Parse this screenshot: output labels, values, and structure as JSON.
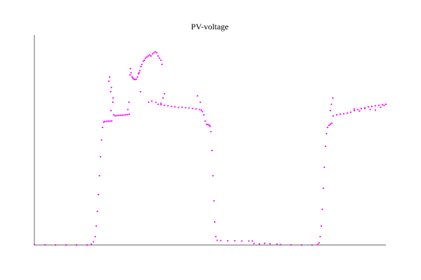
{
  "chart_data": {
    "type": "scatter",
    "title": "PV-voltage",
    "xlabel": "",
    "ylabel": "",
    "grid": false,
    "legend": "none",
    "xlim": [
      0,
      100
    ],
    "ylim": [
      0,
      100
    ],
    "marker_color": "#ff00ff",
    "series": [
      {
        "points": [
          [
            0,
            0.2
          ],
          [
            3,
            0.1
          ],
          [
            6,
            0
          ],
          [
            9,
            0
          ],
          [
            12,
            0
          ],
          [
            15,
            0
          ],
          [
            16.2,
            0.4
          ],
          [
            16.8,
            1.5
          ],
          [
            17.3,
            4
          ],
          [
            17.6,
            9
          ],
          [
            17.9,
            16
          ],
          [
            18.2,
            24
          ],
          [
            18.5,
            33
          ],
          [
            18.8,
            42
          ],
          [
            19.1,
            50
          ],
          [
            19.4,
            56
          ],
          [
            19.7,
            58.5
          ],
          [
            20,
            58.8
          ],
          [
            20.5,
            58.9
          ],
          [
            21,
            59
          ],
          [
            21.5,
            59
          ],
          [
            22,
            59.1
          ],
          [
            21.8,
            64
          ],
          [
            22.3,
            68
          ],
          [
            22.4,
            70
          ],
          [
            21.7,
            73
          ],
          [
            21.9,
            75
          ],
          [
            21.2,
            78
          ],
          [
            21.4,
            80
          ],
          [
            22.6,
            62
          ],
          [
            23,
            61.5
          ],
          [
            23.5,
            61.6
          ],
          [
            24,
            61.7
          ],
          [
            24.5,
            61.8
          ],
          [
            25,
            61.8
          ],
          [
            25.5,
            61.9
          ],
          [
            26,
            62
          ],
          [
            26.5,
            62.1
          ],
          [
            27,
            62.3
          ],
          [
            26.6,
            64.5
          ],
          [
            26.9,
            68
          ],
          [
            27.2,
            81
          ],
          [
            27.3,
            84
          ],
          [
            27.5,
            82
          ],
          [
            27.8,
            80
          ],
          [
            28,
            79.5
          ],
          [
            28.3,
            79
          ],
          [
            28.6,
            78.8
          ],
          [
            29,
            79
          ],
          [
            29.3,
            80
          ],
          [
            29.6,
            81.5
          ],
          [
            29.8,
            82
          ],
          [
            30,
            83
          ],
          [
            30.3,
            85
          ],
          [
            30.6,
            86
          ],
          [
            31,
            87.5
          ],
          [
            31.3,
            88
          ],
          [
            31.6,
            89
          ],
          [
            32,
            89.5
          ],
          [
            32.4,
            90
          ],
          [
            32.8,
            90.5
          ],
          [
            33.2,
            90
          ],
          [
            33.6,
            91
          ],
          [
            34,
            91.5
          ],
          [
            34.4,
            92
          ],
          [
            34.8,
            91.5
          ],
          [
            35.2,
            90
          ],
          [
            35.6,
            89
          ],
          [
            36,
            88
          ],
          [
            36.3,
            86
          ],
          [
            30.2,
            73
          ],
          [
            32.5,
            68
          ],
          [
            33.4,
            68.5
          ],
          [
            34.6,
            67.9
          ],
          [
            36,
            67.5
          ],
          [
            36.6,
            70
          ],
          [
            37,
            72
          ],
          [
            35.2,
            67
          ],
          [
            36,
            66.8
          ],
          [
            37,
            66.5
          ],
          [
            38,
            66.3
          ],
          [
            39,
            66
          ],
          [
            40,
            65.8
          ],
          [
            41,
            65.5
          ],
          [
            42,
            65.6
          ],
          [
            43,
            65.4
          ],
          [
            44,
            65.2
          ],
          [
            45,
            65
          ],
          [
            46,
            64.8
          ],
          [
            47,
            64.5
          ],
          [
            47.5,
            64.2
          ],
          [
            46.4,
            71
          ],
          [
            47.2,
            68
          ],
          [
            47.8,
            63.5
          ],
          [
            48.2,
            62
          ],
          [
            48.6,
            59
          ],
          [
            49,
            57.5
          ],
          [
            49.4,
            57.3
          ],
          [
            49.8,
            57
          ],
          [
            50,
            56.5
          ],
          [
            50.2,
            54
          ],
          [
            50.5,
            45
          ],
          [
            50.8,
            33
          ],
          [
            51.1,
            21
          ],
          [
            51.3,
            11
          ],
          [
            51.6,
            4
          ],
          [
            52,
            2.2
          ],
          [
            53,
            2.1
          ],
          [
            55,
            2
          ],
          [
            57,
            2
          ],
          [
            59,
            1.9
          ],
          [
            61,
            1.9
          ],
          [
            62,
            1.9
          ],
          [
            62.5,
            0.8
          ],
          [
            64,
            0.5
          ],
          [
            65.5,
            0.8
          ],
          [
            67,
            0.6
          ],
          [
            69,
            0.4
          ],
          [
            70,
            0.2
          ],
          [
            73,
            0.1
          ],
          [
            76,
            0
          ],
          [
            79,
            0
          ],
          [
            80.6,
            0.3
          ],
          [
            81,
            1
          ],
          [
            81.3,
            4
          ],
          [
            81.6,
            9
          ],
          [
            81.9,
            17
          ],
          [
            82.2,
            27
          ],
          [
            82.5,
            37
          ],
          [
            82.8,
            47
          ],
          [
            83.1,
            53
          ],
          [
            83.4,
            56
          ],
          [
            83.8,
            57
          ],
          [
            84.2,
            57.5
          ],
          [
            84.6,
            58
          ],
          [
            84.2,
            64
          ],
          [
            84.5,
            67
          ],
          [
            84.9,
            70
          ],
          [
            85,
            61.5
          ],
          [
            86,
            62
          ],
          [
            87,
            62.3
          ],
          [
            88,
            62.5
          ],
          [
            89,
            62.8
          ],
          [
            90,
            63.2
          ],
          [
            91,
            64
          ],
          [
            92,
            64.5
          ],
          [
            93,
            65
          ],
          [
            94,
            65.3
          ],
          [
            95,
            65.8
          ],
          [
            96,
            66
          ],
          [
            97,
            66.3
          ],
          [
            98,
            66.5
          ],
          [
            99,
            66.8
          ],
          [
            100,
            67
          ],
          [
            91,
            64.8
          ],
          [
            92.5,
            63.8
          ],
          [
            94,
            65
          ],
          [
            95.5,
            64.5
          ],
          [
            97,
            64.2
          ],
          [
            98.5,
            65.5
          ],
          [
            99.5,
            66.5
          ]
        ]
      }
    ]
  }
}
